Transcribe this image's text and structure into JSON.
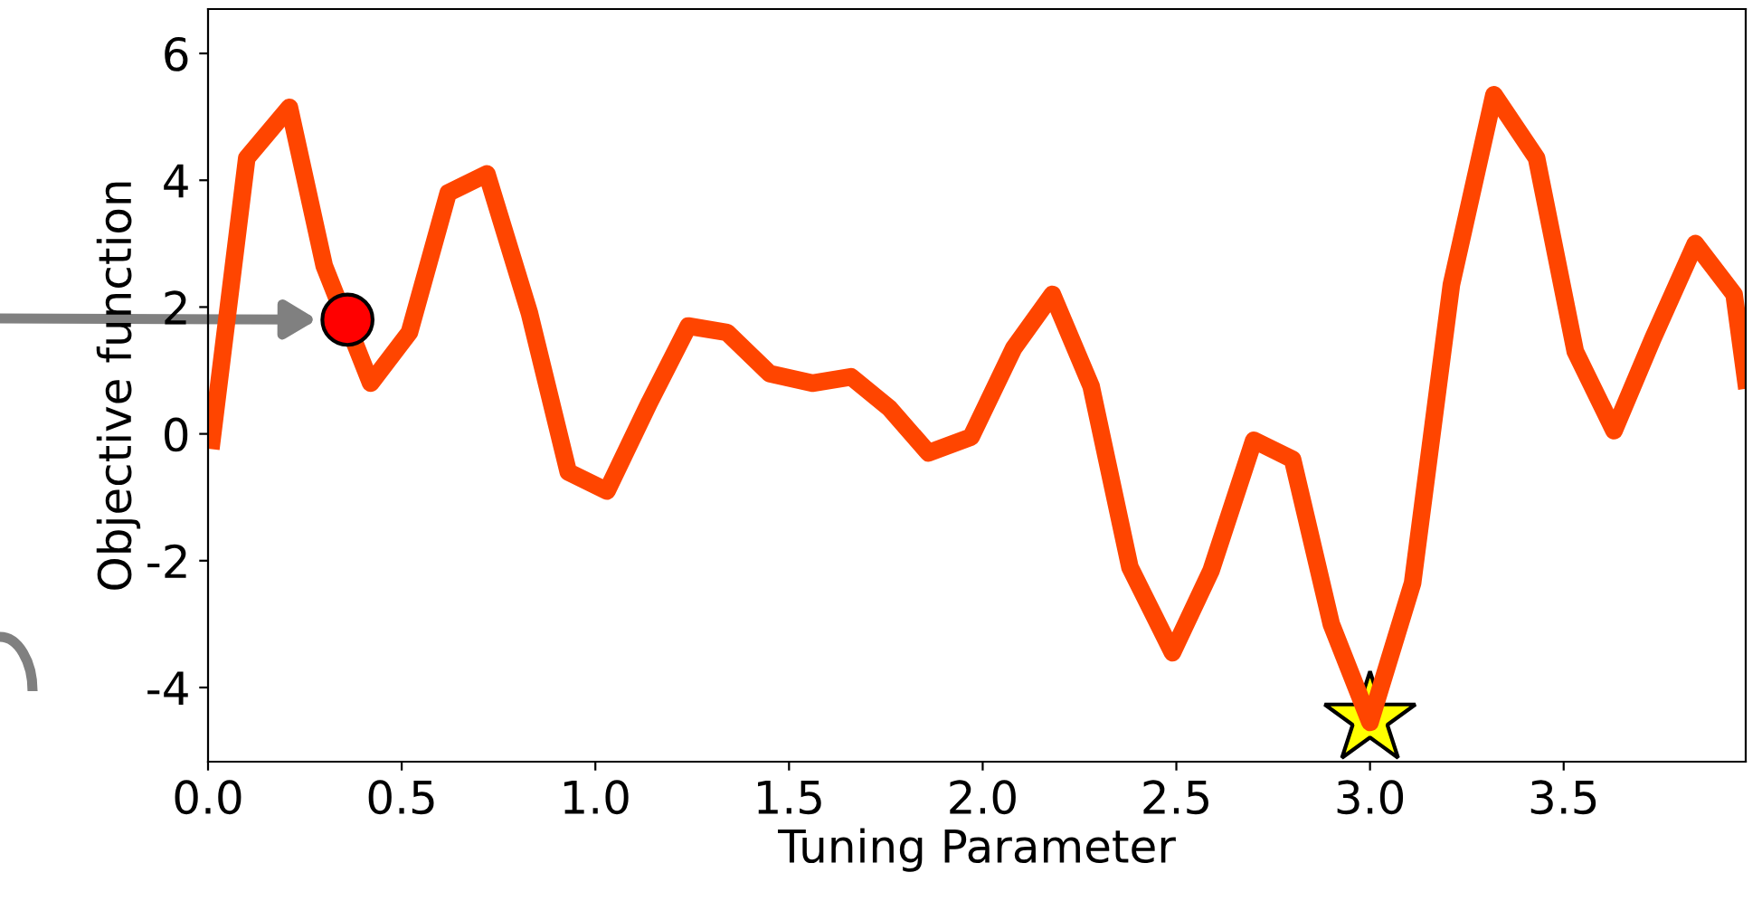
{
  "chart_data": {
    "type": "line",
    "xlabel": "Tuning Parameter",
    "ylabel": "Objective function",
    "xlim": [
      0,
      3.97
    ],
    "ylim": [
      -5.17,
      6.7
    ],
    "xticks": [
      {
        "value": 0,
        "label": "0.0"
      },
      0.5,
      {
        "value": 1,
        "label": "1.0"
      },
      1.5,
      {
        "value": 2,
        "label": "2.0"
      },
      2.5,
      {
        "value": 3,
        "label": "3.0"
      },
      3.5
    ],
    "yticks": [
      -4,
      -2,
      0,
      2,
      4,
      6
    ],
    "grid": false,
    "legend": false,
    "series": [
      {
        "type": "line",
        "color": "#ff4500",
        "marker": "none",
        "line_style": "solid",
        "x": [
          0.01,
          0.1,
          0.21,
          0.3,
          0.42,
          0.52,
          0.62,
          0.72,
          0.83,
          0.93,
          1.03,
          1.14,
          1.24,
          1.34,
          1.45,
          1.56,
          1.66,
          1.76,
          1.86,
          1.97,
          2.08,
          2.18,
          2.28,
          2.38,
          2.49,
          2.59,
          2.7,
          2.8,
          2.9,
          3.0,
          3.11,
          3.21,
          3.32,
          3.43,
          3.53,
          3.63,
          3.73,
          3.84,
          3.94,
          3.97
        ],
        "values": [
          -0.1,
          4.35,
          5.15,
          2.65,
          0.8,
          1.6,
          3.8,
          4.1,
          1.9,
          -0.6,
          -0.9,
          0.5,
          1.7,
          1.6,
          0.95,
          0.8,
          0.9,
          0.4,
          -0.3,
          -0.05,
          1.35,
          2.2,
          0.75,
          -2.1,
          -3.45,
          -2.15,
          -0.1,
          -0.4,
          -3.0,
          -4.55,
          -2.35,
          2.35,
          5.35,
          4.35,
          1.3,
          0.05,
          1.5,
          3.0,
          2.2,
          0.85
        ]
      },
      {
        "type": "scatter",
        "color": "#ff0000",
        "marker": "circle",
        "x": [
          0.36
        ],
        "values": [
          1.8
        ]
      },
      {
        "type": "scatter",
        "color": "#ffff00",
        "marker": "star",
        "x": [
          3.0
        ],
        "values": [
          -4.5
        ]
      }
    ]
  }
}
